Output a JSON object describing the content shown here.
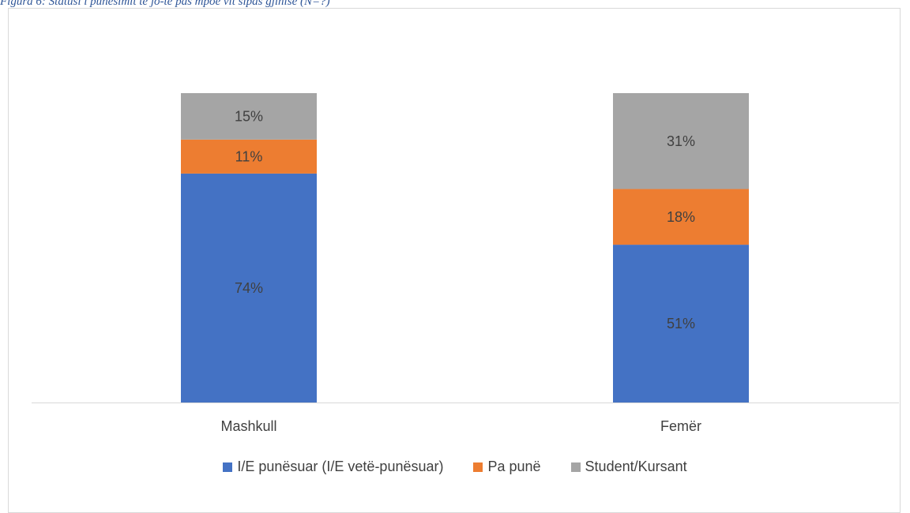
{
  "caption": "Figura 6: Statusi i punësimit të jo-të pas mpoe vit sipas gjinise (N=?)",
  "chart_data": {
    "type": "bar",
    "stacked": true,
    "categories": [
      "Mashkull",
      "Femër"
    ],
    "series": [
      {
        "name": "I/E punësuar (I/E vetë-punësuar)",
        "color": "#4472c4",
        "values": [
          74,
          51
        ],
        "labels": [
          "74%",
          "51%"
        ]
      },
      {
        "name": "Pa punë",
        "color": "#ed7d31",
        "values": [
          11,
          18
        ],
        "labels": [
          "11%",
          "18%"
        ]
      },
      {
        "name": "Student/Kursant",
        "color": "#a5a5a5",
        "values": [
          15,
          31
        ],
        "labels": [
          "15%",
          "31%"
        ]
      }
    ],
    "ylim": [
      0,
      100
    ],
    "legend_position": "bottom",
    "grid": false
  }
}
